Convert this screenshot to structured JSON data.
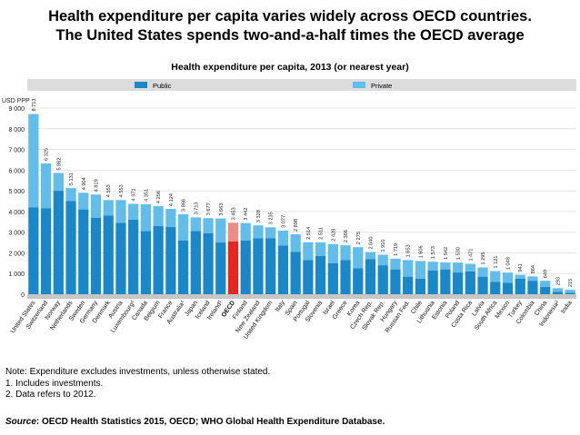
{
  "headline": {
    "line1": "Health expenditure per capita varies widely across OECD countries.",
    "line2": "The United States spends two-and-a-half times the OECD average"
  },
  "colors": {
    "public": "#1a87c9",
    "private": "#62bdea",
    "oecd": "#e8251f",
    "legend_bg": "#dcdcdc",
    "grid": "#e4e4e4",
    "axis_band": "#c6c6c6"
  },
  "chart_data": {
    "type": "bar",
    "stacked": true,
    "title": "Health expenditure per capita, 2013 (or nearest year)",
    "ylabel": "USD PPP",
    "ylim": [
      0,
      9000
    ],
    "yticks": [
      0,
      1000,
      2000,
      3000,
      4000,
      5000,
      6000,
      7000,
      8000,
      9000
    ],
    "ytick_labels": [
      "0",
      "1 000",
      "2 000",
      "3 000",
      "4 000",
      "5 000",
      "6 000",
      "7 000",
      "8 000",
      "9 000"
    ],
    "grid": true,
    "legend_position": "top",
    "highlight": "OECD",
    "categories": [
      "United States",
      "Switzerland",
      "Norway",
      "Netherlands",
      "Sweden",
      "Germany",
      "Denmark",
      "Austria",
      "Luxembourg¹",
      "Canada",
      "Belgium",
      "France",
      "Australia¹",
      "Japan",
      "Iceland",
      "Ireland¹",
      "OECD",
      "Finland",
      "New Zealand",
      "United Kingdom",
      "Italy",
      "Spain",
      "Portugal",
      "Slovenia",
      "Israel",
      "Greece",
      "Korea",
      "Czech Rep.",
      "Slovak Rep.",
      "Hungary",
      "Russian Fed.",
      "Chile",
      "Lithuania",
      "Estonia",
      "Poland",
      "Costa Rica",
      "Latvia",
      "South Africa",
      "Mexico",
      "Turkey",
      "Colombia",
      "China",
      "Indonesia²",
      "India"
    ],
    "totals": [
      8713,
      6325,
      5862,
      5131,
      4904,
      4819,
      4553,
      4553,
      4371,
      4351,
      4256,
      4124,
      3866,
      3713,
      3677,
      3663,
      3453,
      3442,
      3328,
      3235,
      3077,
      2898,
      2514,
      2511,
      2428,
      2366,
      2275,
      2040,
      1910,
      1719,
      1653,
      1606,
      1573,
      1542,
      1530,
      1471,
      1295,
      1121,
      1048,
      941,
      864,
      649,
      293,
      215
    ],
    "total_labels": [
      "8 713",
      "6 325",
      "5 862",
      "5 131",
      "4 904",
      "4 819",
      "4 553",
      "4 553",
      "4 371",
      "4 351",
      "4 256",
      "4 124",
      "3 866",
      "3 713",
      "3 677",
      "3 663",
      "3 453",
      "3 442",
      "3 328",
      "3 235",
      "3 077",
      "2 898",
      "2 514",
      "2 511",
      "2 428",
      "2 366",
      "2 275",
      "2 040",
      "1 910",
      "1 719",
      "1 653",
      "1 606",
      "1 573",
      "1 542",
      "1 530",
      "1 471",
      "1 295",
      "1 121",
      "1 048",
      "941",
      "864",
      "649",
      "293",
      "215"
    ],
    "series": [
      {
        "name": "Public",
        "values": [
          4200,
          4150,
          5000,
          4500,
          4100,
          3700,
          3800,
          3450,
          3600,
          3050,
          3300,
          3250,
          2600,
          3050,
          2950,
          2500,
          2550,
          2600,
          2700,
          2700,
          2350,
          2050,
          1650,
          1850,
          1500,
          1650,
          1250,
          1700,
          1400,
          1200,
          850,
          750,
          1150,
          1200,
          1050,
          1100,
          850,
          600,
          550,
          750,
          650,
          350,
          120,
          70
        ]
      },
      {
        "name": "Private",
        "values": [
          4513,
          2175,
          862,
          631,
          804,
          1119,
          753,
          1103,
          771,
          1301,
          956,
          874,
          1266,
          663,
          727,
          1163,
          903,
          842,
          628,
          535,
          727,
          848,
          864,
          661,
          928,
          716,
          1025,
          340,
          510,
          519,
          803,
          856,
          423,
          342,
          480,
          371,
          445,
          521,
          498,
          191,
          214,
          299,
          173,
          145
        ]
      }
    ]
  },
  "legend": {
    "public": "Public",
    "private": "Private"
  },
  "notes": {
    "line1": "Note: Expenditure excludes investments, unless otherwise stated.",
    "line2": "1. Includes investments.",
    "line3": "2. Data refers to 2012."
  },
  "source": {
    "label": "Source",
    "text": ": OECD Health Statistics 2015, OECD; WHO Global Health Expenditure Database."
  }
}
